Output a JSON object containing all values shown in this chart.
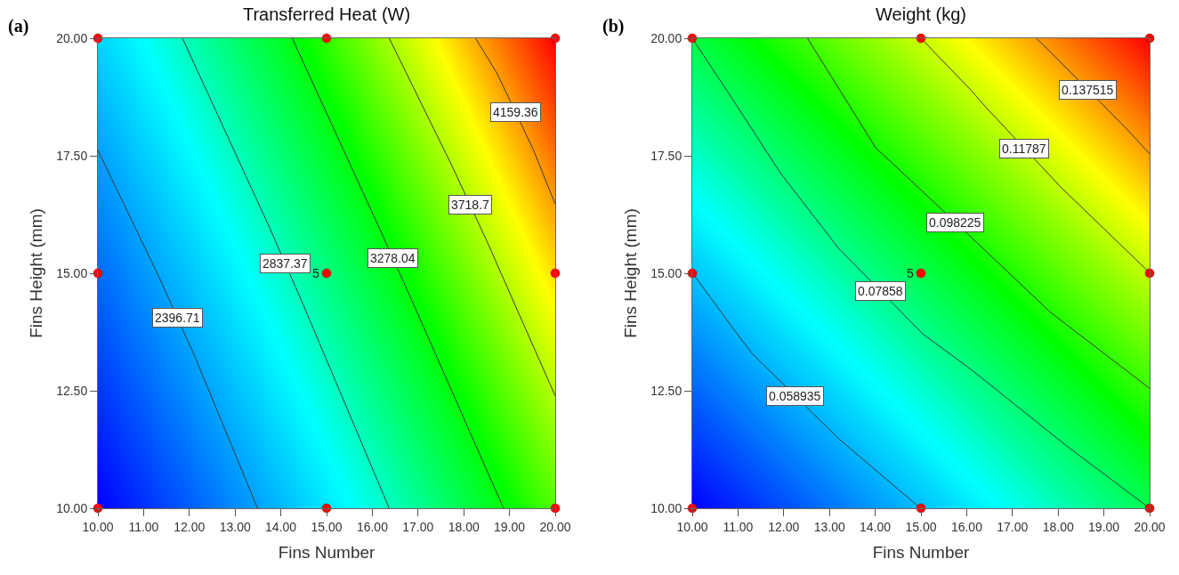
{
  "chart_data": [
    {
      "type": "line",
      "title": "Transferred Heat (W)",
      "xlabel": "Fins Number",
      "ylabel": "Fins Height (mm)",
      "annotations": [
        "(a)",
        {
          "text": "5",
          "x": 15,
          "y": 15
        }
      ],
      "xlim": [
        10,
        20
      ],
      "ylim": [
        10,
        20
      ],
      "xticks": [
        {
          "value": 10,
          "label": "10.00"
        },
        {
          "value": 11,
          "label": "11.00"
        },
        {
          "value": 12,
          "label": "12.00"
        },
        {
          "value": 13,
          "label": "13.00"
        },
        {
          "value": 14,
          "label": "14.00"
        },
        {
          "value": 15,
          "label": "15.00"
        },
        {
          "value": 16,
          "label": "16.00"
        },
        {
          "value": 17,
          "label": "17.00"
        },
        {
          "value": 18,
          "label": "18.00"
        },
        {
          "value": 19,
          "label": "19.00"
        },
        {
          "value": 20,
          "label": "20.00"
        }
      ],
      "yticks": [
        {
          "value": 10,
          "label": "10.00"
        },
        {
          "value": 12.5,
          "label": "12.50"
        },
        {
          "value": 15,
          "label": "15.00"
        },
        {
          "value": 17.5,
          "label": "17.50"
        },
        {
          "value": 20,
          "label": "20.00"
        }
      ],
      "grid": false,
      "legend": false,
      "marker": "none",
      "line_style": "solid",
      "series": [
        {
          "name": "2396.71",
          "color": "#3a3a3a",
          "x": [
            10,
            11.37,
            12.11,
            13.49
          ],
          "values": [
            17.62,
            14.85,
            13.25,
            10
          ]
        },
        {
          "name": "2837.37",
          "color": "#3a3a3a",
          "x": [
            11.85,
            13.74,
            14.46,
            16.37
          ],
          "values": [
            20,
            16,
            14.4,
            10
          ]
        },
        {
          "name": "3278.04",
          "color": "#3a3a3a",
          "x": [
            14.25,
            16.08,
            16.82,
            18.87
          ],
          "values": [
            20,
            16.12,
            14.52,
            10
          ]
        },
        {
          "name": "3718.7",
          "color": "#3a3a3a",
          "x": [
            16.37,
            17.76,
            18.52,
            20
          ],
          "values": [
            20,
            17.25,
            15.65,
            12.39
          ]
        },
        {
          "name": "4159.36",
          "color": "#3a3a3a",
          "x": [
            18.26,
            18.74,
            19.52,
            20
          ],
          "values": [
            20,
            19.23,
            17.63,
            16.47
          ]
        },
        {
          "type": "scatter",
          "color": "#ff0000",
          "marker": "circle",
          "x": [
            10,
            15,
            20,
            10,
            15,
            20,
            10,
            15,
            20
          ],
          "values": [
            10,
            10,
            10,
            15,
            15,
            15,
            20,
            20,
            20
          ]
        }
      ]
    },
    {
      "type": "line",
      "title": "Weight (kg)",
      "xlabel": "Fins Number",
      "ylabel": "Fins Height (mm)",
      "annotations": [
        "(b)",
        {
          "text": "5",
          "x": 15,
          "y": 15
        }
      ],
      "xlim": [
        10,
        20
      ],
      "ylim": [
        10,
        20
      ],
      "xticks": [
        {
          "value": 10,
          "label": "10.00"
        },
        {
          "value": 11,
          "label": "11.00"
        },
        {
          "value": 12,
          "label": "12.00"
        },
        {
          "value": 13,
          "label": "13.00"
        },
        {
          "value": 14,
          "label": "14.00"
        },
        {
          "value": 15,
          "label": "15.00"
        },
        {
          "value": 16,
          "label": "16.00"
        },
        {
          "value": 17,
          "label": "17.00"
        },
        {
          "value": 18,
          "label": "18.00"
        },
        {
          "value": 19,
          "label": "19.00"
        },
        {
          "value": 20,
          "label": "20.00"
        }
      ],
      "yticks": [
        {
          "value": 10,
          "label": "10.00"
        },
        {
          "value": 12.5,
          "label": "12.50"
        },
        {
          "value": 15,
          "label": "15.00"
        },
        {
          "value": 17.5,
          "label": "17.50"
        },
        {
          "value": 20,
          "label": "20.00"
        }
      ],
      "grid": false,
      "legend": false,
      "marker": "none",
      "line_style": "solid",
      "series": [
        {
          "name": "0.058935",
          "color": "#3a3a3a",
          "x": [
            10,
            10.89,
            11.3,
            13.2,
            14.99
          ],
          "values": [
            15.01,
            13.83,
            13.3,
            11.48,
            10
          ]
        },
        {
          "name": "0.07858",
          "color": "#3a3a3a",
          "x": [
            10,
            10.89,
            11.93,
            13.2,
            15.04,
            16.1,
            18.18,
            20
          ],
          "values": [
            20,
            18.69,
            17.13,
            15.53,
            13.71,
            12.95,
            11.33,
            10
          ]
        },
        {
          "name": "0.098225",
          "color": "#3a3a3a",
          "x": [
            12.52,
            14.01,
            14.85,
            16.65,
            17.83,
            20
          ],
          "values": [
            20,
            17.67,
            16.91,
            15.26,
            14.17,
            12.55
          ]
        },
        {
          "name": "0.11787",
          "color": "#3a3a3a",
          "x": [
            15,
            16.1,
            16.45,
            18.07,
            18.53,
            20
          ],
          "values": [
            20,
            18.89,
            18.5,
            16.82,
            16.39,
            15.01
          ]
        },
        {
          "name": "0.137515",
          "color": "#3a3a3a",
          "x": [
            17.52,
            17.8,
            19.5,
            20
          ],
          "values": [
            20,
            19.74,
            18.07,
            17.54
          ]
        },
        {
          "type": "scatter",
          "color": "#ff0000",
          "marker": "circle",
          "x": [
            10,
            15,
            20,
            10,
            15,
            20,
            10,
            15,
            20
          ],
          "values": [
            10,
            10,
            10,
            15,
            15,
            15,
            20,
            20,
            20
          ]
        }
      ]
    }
  ]
}
